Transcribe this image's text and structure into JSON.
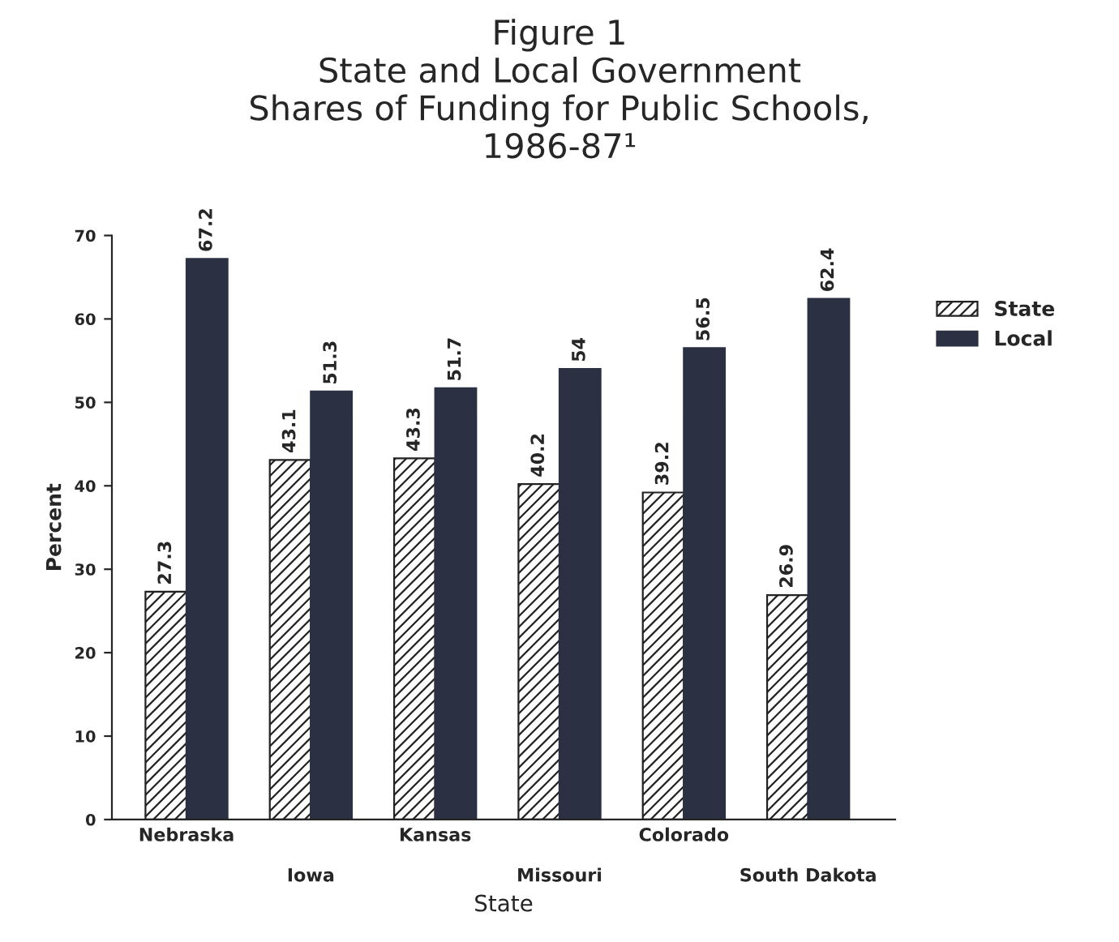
{
  "chart_data": {
    "type": "bar",
    "title": "Figure 1\nState and Local Government\nShares of Funding for Public Schools,\n1986-87¹",
    "xlabel": "State",
    "ylabel": "Percent",
    "categories": [
      "Nebraska",
      "Iowa",
      "Kansas",
      "Missouri",
      "Colorado",
      "South Dakota"
    ],
    "series": [
      {
        "name": "State",
        "color": "#222222",
        "values": [
          27.3,
          43.1,
          43.3,
          40.2,
          39.2,
          26.9
        ]
      },
      {
        "name": "Local",
        "color": "#2b3142",
        "values": [
          67.2,
          51.3,
          51.7,
          54,
          56.5,
          62.4
        ]
      }
    ],
    "ylim": [
      0,
      70
    ],
    "yticks": [
      0,
      10,
      20,
      30,
      40,
      50,
      60,
      70
    ],
    "data_labels": true,
    "legend": "top right",
    "grid": false
  }
}
